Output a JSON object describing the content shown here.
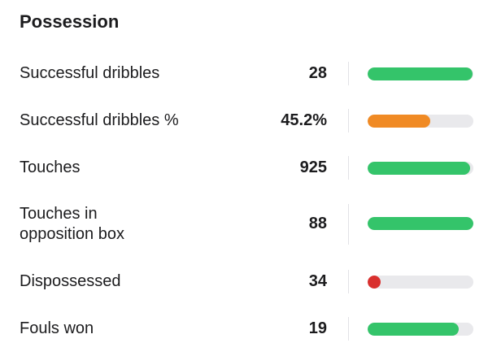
{
  "section": {
    "title": "Possession"
  },
  "stats": [
    {
      "label": "Successful dribbles",
      "value": "28",
      "level": 0.99,
      "color": "#34c46a"
    },
    {
      "label": "Successful dribbles %",
      "value": "45.2%",
      "level": 0.59,
      "color": "#f08a24"
    },
    {
      "label": "Touches",
      "value": "925",
      "level": 0.97,
      "color": "#34c46a"
    },
    {
      "label": "Touches in\nopposition box",
      "value": "88",
      "level": 1.0,
      "color": "#34c46a"
    },
    {
      "label": "Dispossessed",
      "value": "34",
      "level": 0.0,
      "color": "#d9302e",
      "dot": true
    },
    {
      "label": "Fouls won",
      "value": "19",
      "level": 0.86,
      "color": "#34c46a"
    }
  ]
}
